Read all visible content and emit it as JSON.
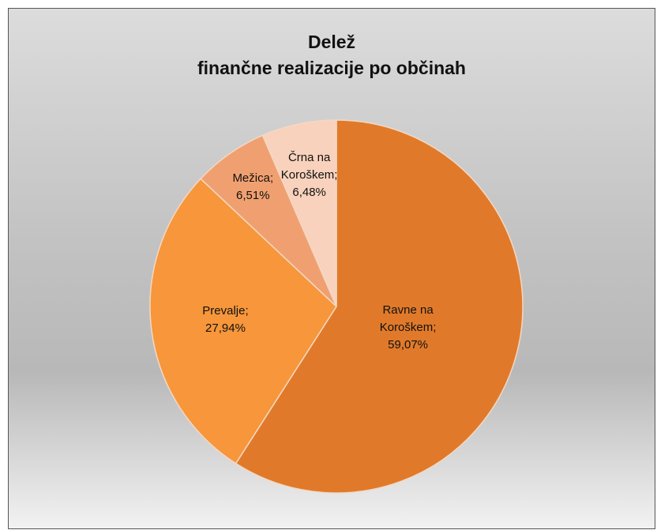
{
  "chart_data": {
    "type": "pie",
    "title": "Delež\nfinančne realizacije po občinah",
    "categories": [
      "Ravne na Koroškem;",
      "Prevalje;",
      "Mežica;",
      "Črna na Koroškem;"
    ],
    "values": [
      59.07,
      27.94,
      6.51,
      6.48
    ],
    "value_labels": [
      "59,07%",
      "27,94%",
      "6,51%",
      "6,48%"
    ],
    "colors": [
      "#e07a2a",
      "#f7963a",
      "#f0a070",
      "#f8d2bc"
    ]
  }
}
